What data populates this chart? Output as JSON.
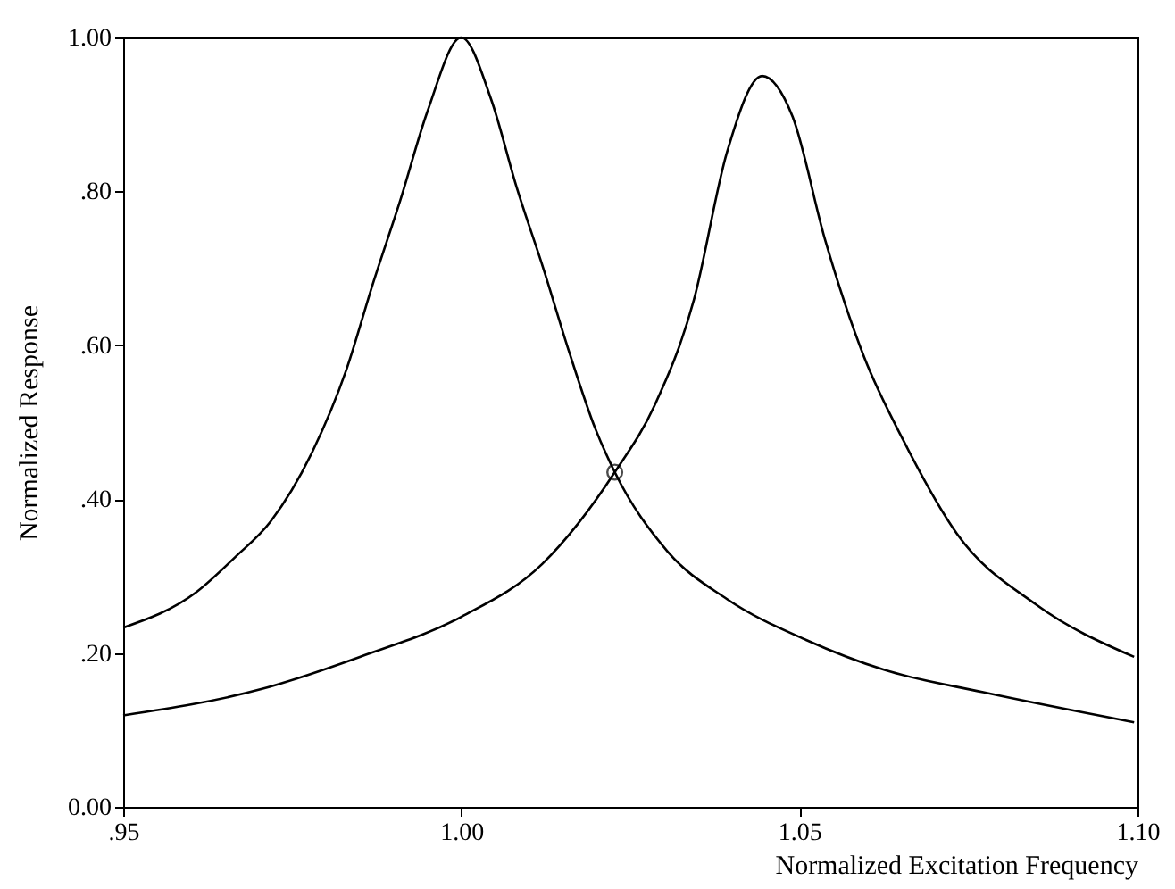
{
  "chart_data": {
    "type": "line",
    "xlabel": "Normalized Excitation Frequency",
    "ylabel": "Normalized Response",
    "xlim": [
      0.95,
      1.1
    ],
    "ylim": [
      0,
      1.0
    ],
    "xticks": [
      {
        "value": 0.95,
        "label": ".95"
      },
      {
        "value": 1.0,
        "label": "1.00"
      },
      {
        "value": 1.05,
        "label": "1.05"
      },
      {
        "value": 1.1,
        "label": "1.10"
      }
    ],
    "yticks": [
      {
        "value": 0,
        "label": "0.00"
      },
      {
        "value": 0.2,
        "label": ".20"
      },
      {
        "value": 0.4,
        "label": ".40"
      },
      {
        "value": 0.6,
        "label": ".60"
      },
      {
        "value": 0.8,
        "label": ".80"
      },
      {
        "value": 1.0,
        "label": "1.00"
      }
    ],
    "grid": false,
    "line_style": "solid",
    "series": [
      {
        "color": "#000000",
        "x": [
          0.95,
          0.9608,
          0.9666,
          0.9718,
          0.978,
          0.983,
          0.987,
          0.991,
          0.995,
          1.0,
          1.0044,
          1.0082,
          1.0122,
          1.016,
          1.0198,
          1.0227,
          1.0305,
          1.0393,
          1.051,
          1.0626,
          1.0772,
          1.0995
        ],
        "values": [
          0.233,
          0.279,
          0.325,
          0.371,
          0.462,
          0.568,
          0.682,
          0.789,
          0.904,
          1.0,
          0.92,
          0.805,
          0.698,
          0.59,
          0.492,
          0.435,
          0.332,
          0.27,
          0.217,
          0.178,
          0.149,
          0.11
        ]
      },
      {
        "color": "#000000",
        "x": [
          0.95,
          0.9704,
          0.985,
          1.0,
          1.012,
          1.0227,
          1.0286,
          1.0344,
          1.0393,
          1.0445,
          1.049,
          1.0538,
          1.0596,
          1.0654,
          1.0733,
          1.085,
          1.0995
        ],
        "values": [
          0.119,
          0.153,
          0.195,
          0.247,
          0.316,
          0.435,
          0.522,
          0.659,
          0.851,
          0.95,
          0.897,
          0.737,
          0.584,
          0.476,
          0.355,
          0.263,
          0.195
        ]
      },
      {
        "type": "scatter",
        "color": "#000000",
        "x": [
          1.0227
        ],
        "values": [
          0.435
        ]
      }
    ]
  }
}
